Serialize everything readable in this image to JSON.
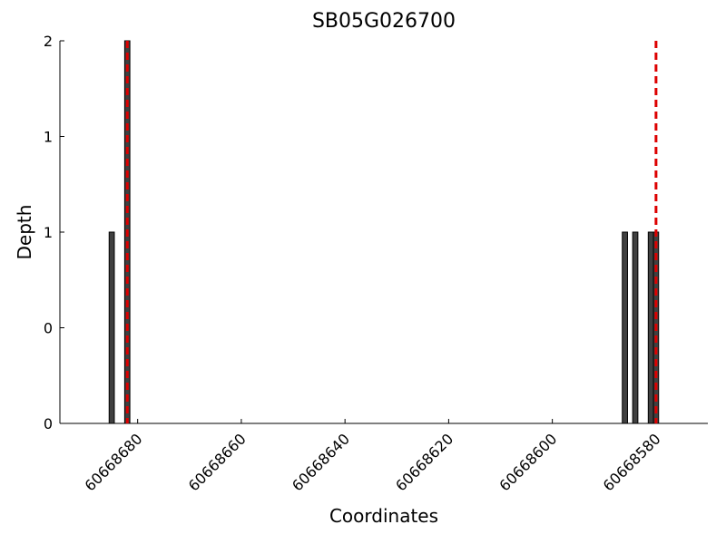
{
  "chart_data": {
    "type": "bar",
    "title": "SB05G026700",
    "x_label": "Coordinates",
    "y_label": "Depth",
    "x": [
      60668685,
      60668682,
      60668586,
      60668584,
      60668581,
      60668580
    ],
    "values": [
      1,
      2,
      1,
      1,
      1,
      1
    ],
    "color": "#404040",
    "xlim": [
      60668695,
      60668570
    ],
    "xticks": [
      60668680,
      60668660,
      60668640,
      60668620,
      60668600,
      60668580
    ],
    "ylim": [
      0,
      2
    ],
    "yticks": [
      {
        "value": 0,
        "label": "0"
      },
      {
        "value": 0.5,
        "label": "0"
      },
      {
        "value": 1,
        "label": "1"
      },
      {
        "value": 1.5,
        "label": "1"
      },
      {
        "value": 2,
        "label": "2"
      }
    ],
    "vlines": [
      60668682,
      60668580
    ],
    "vline_color": "#dd0000"
  }
}
